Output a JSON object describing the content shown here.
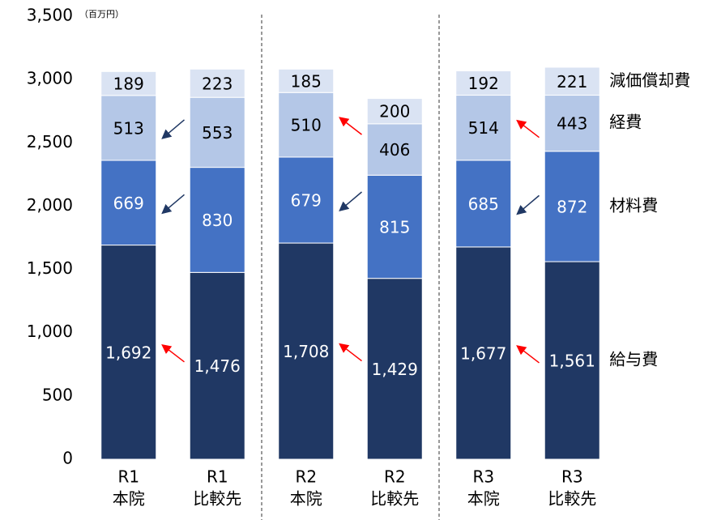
{
  "chart_data": {
    "type": "stacked_bar",
    "unit": "（百万円）",
    "categories": [
      [
        "R1",
        "本院"
      ],
      [
        "R1",
        "比較先"
      ],
      [
        "R2",
        "本院"
      ],
      [
        "R2",
        "比較先"
      ],
      [
        "R3",
        "本院"
      ],
      [
        "R3",
        "比較先"
      ]
    ],
    "series": [
      {
        "name": "給与費",
        "color": "#203864",
        "values": [
          1692,
          1476,
          1708,
          1429,
          1677,
          1561
        ],
        "value_labels": [
          "1,692",
          "1,476",
          "1,708",
          "1,429",
          "1,677",
          "1,561"
        ]
      },
      {
        "name": "材料費",
        "color": "#4472c4",
        "values": [
          669,
          830,
          679,
          815,
          685,
          872
        ]
      },
      {
        "name": "経費",
        "color": "#b4c7e7",
        "values": [
          513,
          553,
          510,
          406,
          514,
          443
        ]
      },
      {
        "name": "減価償却費",
        "color": "#dae3f3",
        "values": [
          189,
          223,
          185,
          200,
          192,
          221
        ]
      }
    ],
    "ylim": [
      0,
      3500
    ],
    "yticks": [
      0,
      500,
      {
        "value": 1000,
        "label": "1,000"
      },
      {
        "value": 1500,
        "label": "1,500"
      },
      {
        "value": 2000,
        "label": "2,000"
      },
      {
        "value": 2500,
        "label": "2,500"
      },
      {
        "value": 3000,
        "label": "3,000"
      },
      {
        "value": 3500,
        "label": "3,500"
      }
    ],
    "grid": false
  }
}
